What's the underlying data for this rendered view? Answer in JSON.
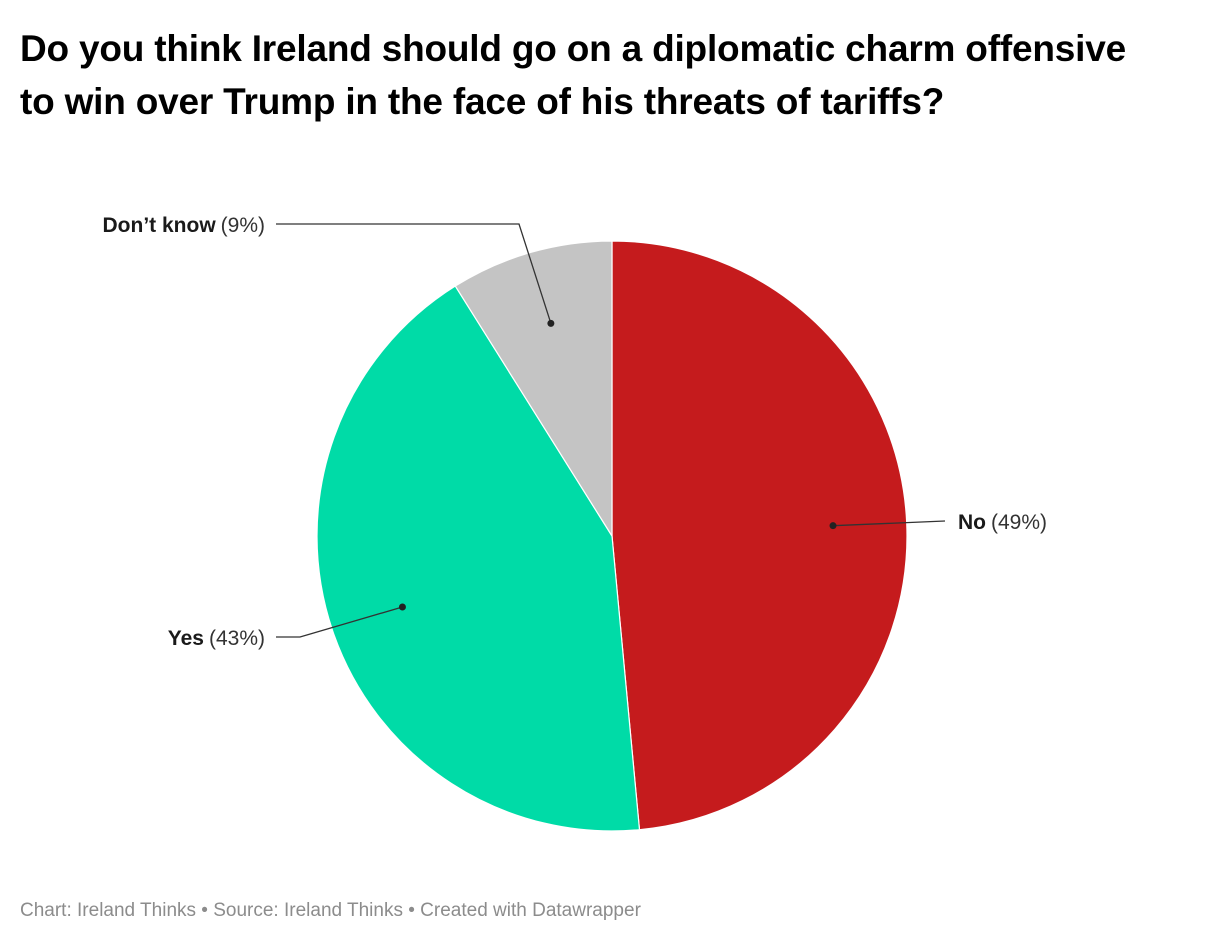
{
  "chart_data": {
    "type": "pie",
    "title": "Do you think Ireland should go on a diplomatic charm offensive to win over Trump in the face of his threats of tariffs?",
    "slices": [
      {
        "label": "No",
        "value": 49,
        "display": "(49%)",
        "color": "#c51b1d",
        "label_side": "right"
      },
      {
        "label": "Yes",
        "value": 43,
        "display": "(43%)",
        "color": "#00dba7",
        "label_side": "left"
      },
      {
        "label": "Don’t know",
        "value": 9,
        "display": "(9%)",
        "color": "#c4c4c4",
        "label_side": "top-left"
      }
    ],
    "start": "12 o'clock",
    "direction": "clockwise"
  },
  "footer": {
    "text": "Chart: Ireland Thinks • Source: Ireland Thinks • Created with Datawrapper"
  }
}
